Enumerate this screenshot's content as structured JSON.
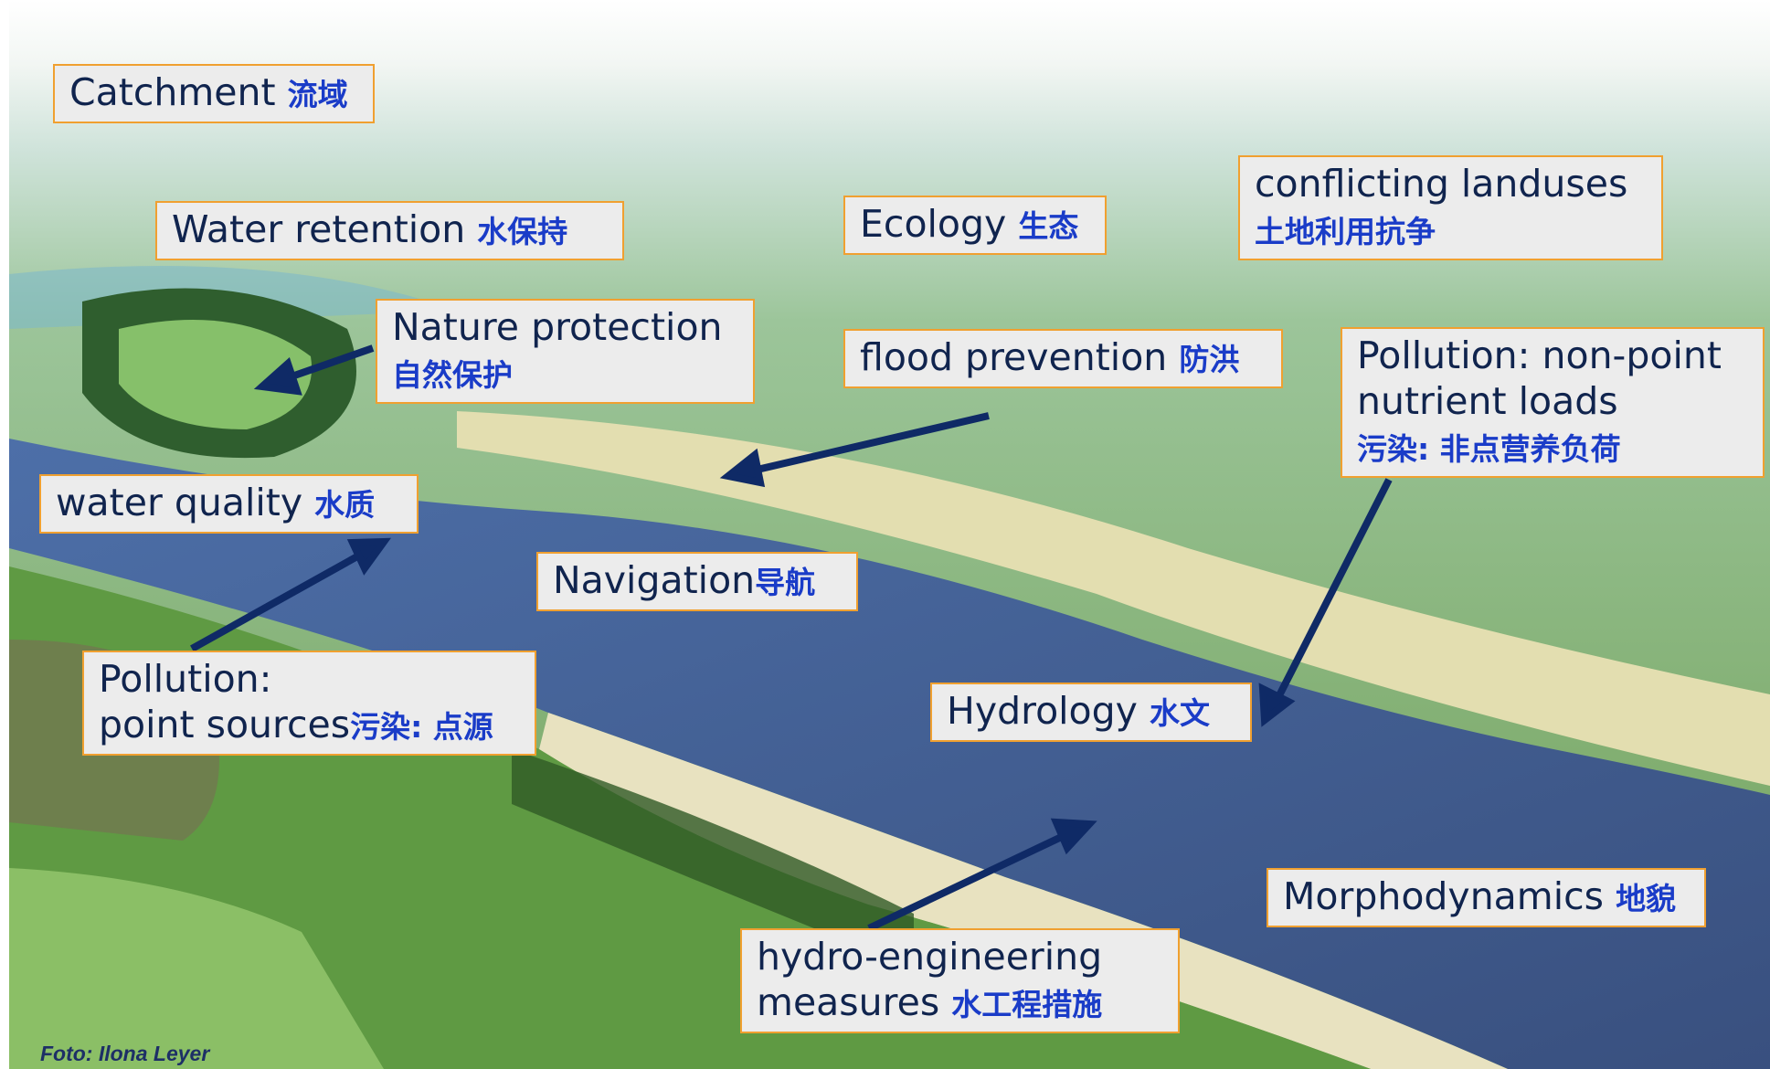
{
  "labels": [
    {
      "lines": [
        [
          {
            "en": "Catchment "
          },
          {
            "zh": "流域"
          }
        ]
      ]
    },
    {
      "lines": [
        [
          {
            "en": "Water retention "
          },
          {
            "zh": "水保持"
          }
        ]
      ]
    },
    {
      "lines": [
        [
          {
            "en": "Nature protection"
          }
        ],
        [
          {
            "zh": "自然保护"
          }
        ]
      ]
    },
    {
      "lines": [
        [
          {
            "en": "Ecology "
          },
          {
            "zh": "生态"
          }
        ]
      ]
    },
    {
      "lines": [
        [
          {
            "en": "conflicting landuses"
          }
        ],
        [
          {
            "zh": "土地利用抗争"
          }
        ]
      ]
    },
    {
      "lines": [
        [
          {
            "en": "flood prevention "
          },
          {
            "zh": "防洪"
          }
        ]
      ]
    },
    {
      "lines": [
        [
          {
            "en": "Pollution: non-point"
          }
        ],
        [
          {
            "en": "nutrient loads"
          }
        ],
        [
          {
            "zh": "污染: 非点营养负荷"
          }
        ]
      ]
    },
    {
      "lines": [
        [
          {
            "en": "water quality "
          },
          {
            "zh": "水质"
          }
        ]
      ]
    },
    {
      "lines": [
        [
          {
            "en": "Navigation"
          },
          {
            "zh": "导航"
          }
        ]
      ]
    },
    {
      "lines": [
        [
          {
            "en": "Pollution:"
          }
        ],
        [
          {
            "en": "point sources"
          },
          {
            "zh": "污染: 点源"
          }
        ]
      ]
    },
    {
      "lines": [
        [
          {
            "en": "Hydrology "
          },
          {
            "zh": "水文"
          }
        ]
      ]
    },
    {
      "lines": [
        [
          {
            "en": "Morphodynamics "
          },
          {
            "zh": "地貌"
          }
        ]
      ]
    },
    {
      "lines": [
        [
          {
            "en": "hydro-engineering"
          }
        ],
        [
          {
            "en": "measures "
          },
          {
            "zh": "水工程措施"
          }
        ]
      ]
    }
  ],
  "credit": "Foto: Ilona Leyer"
}
